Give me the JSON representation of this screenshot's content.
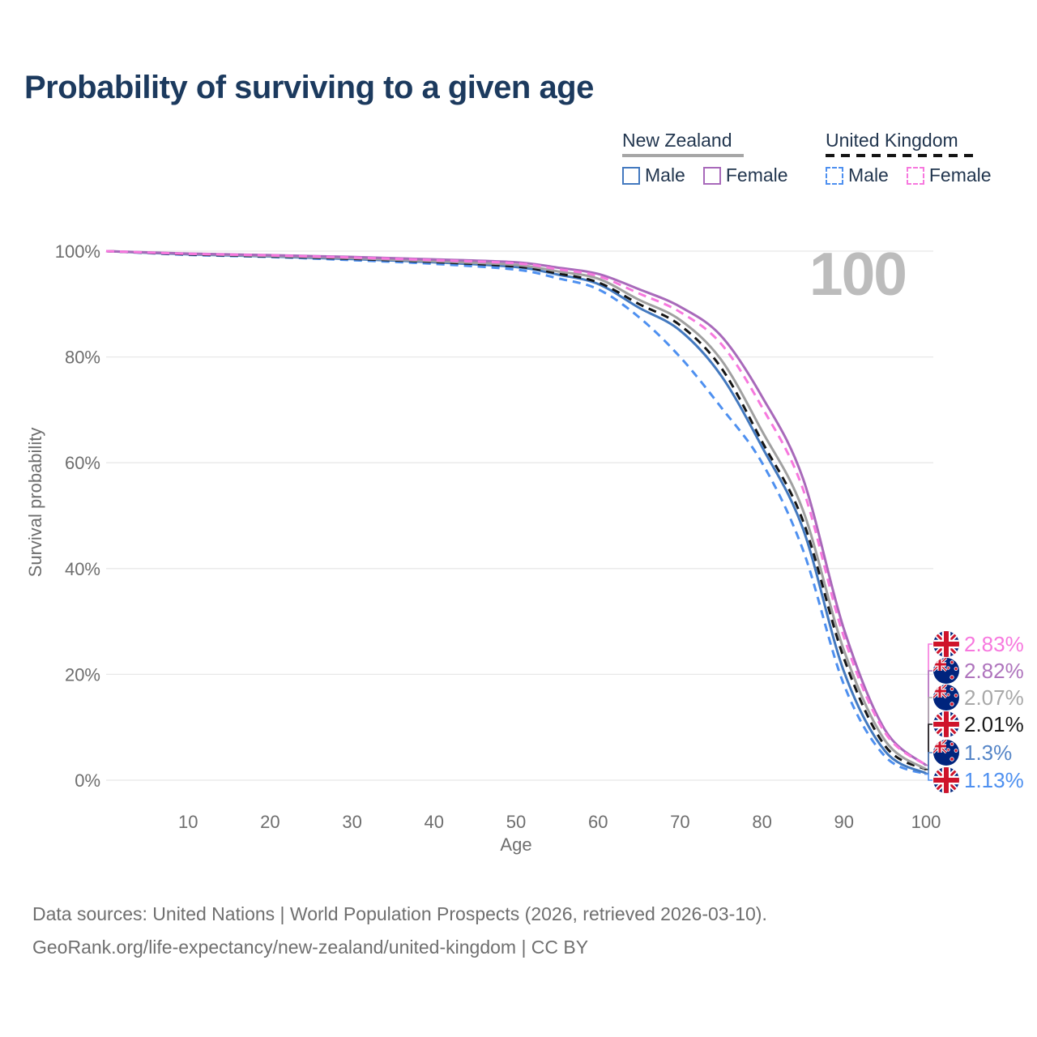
{
  "title": "Probability of surviving to a given age",
  "watermark": "100",
  "legend": {
    "groups": [
      {
        "name": "New Zealand",
        "line_style": "solid",
        "underline_color": "#a6a6a6",
        "items": [
          {
            "label": "Male",
            "color": "#4379bf"
          },
          {
            "label": "Female",
            "color": "#a869ba"
          }
        ]
      },
      {
        "name": "United Kingdom",
        "line_style": "dashed",
        "underline_color": "#141414",
        "items": [
          {
            "label": "Male",
            "color": "#4e90f0"
          },
          {
            "label": "Female",
            "color": "#f778de"
          }
        ]
      }
    ]
  },
  "axes": {
    "y_label": "Survival probability",
    "y_ticks": [
      0,
      20,
      40,
      60,
      80,
      100
    ],
    "y_tick_suffix": "%",
    "x_label": "Age",
    "x_ticks": [
      10,
      20,
      30,
      40,
      50,
      60,
      70,
      80,
      90,
      100
    ]
  },
  "chart_data": {
    "type": "line",
    "xlabel": "Age",
    "ylabel": "Survival probability",
    "xlim": [
      0,
      100
    ],
    "ylim": [
      0,
      100
    ],
    "grid": "horizontal",
    "x": [
      0,
      10,
      20,
      30,
      40,
      50,
      55,
      60,
      65,
      70,
      75,
      80,
      85,
      90,
      95,
      100
    ],
    "series": [
      {
        "name": "United Kingdom Male",
        "country": "uk",
        "sex": "male",
        "color": "#4e90f0",
        "dashed": true,
        "values": [
          100,
          99.3,
          98.9,
          98.3,
          97.6,
          96.5,
          94.9,
          92.8,
          87.5,
          80.0,
          70.5,
          60.0,
          43.5,
          18.0,
          4.5,
          1.13
        ]
      },
      {
        "name": "New Zealand Male",
        "country": "nz",
        "sex": "male",
        "color": "#4379bf",
        "dashed": false,
        "values": [
          100,
          99.4,
          99.0,
          98.5,
          97.9,
          97.0,
          95.6,
          93.8,
          89.3,
          85.0,
          76.5,
          63.0,
          47.5,
          20.5,
          5.5,
          1.3
        ]
      },
      {
        "name": "United Kingdom Both sexes",
        "country": "uk",
        "sex": "both",
        "color": "#151515",
        "dashed": true,
        "values": [
          100,
          99.4,
          99.0,
          98.55,
          97.95,
          97.1,
          95.8,
          94.1,
          90.0,
          86.0,
          78.0,
          64.0,
          49.0,
          23.0,
          6.5,
          2.01
        ]
      },
      {
        "name": "New Zealand Both sexes",
        "country": "nz",
        "sex": "both",
        "color": "#a0a0a0",
        "dashed": false,
        "values": [
          100,
          99.5,
          99.1,
          98.7,
          98.1,
          97.4,
          96.2,
          94.8,
          90.8,
          87.0,
          79.5,
          66.0,
          51.0,
          24.5,
          7.5,
          2.07
        ]
      },
      {
        "name": "New Zealand Female",
        "country": "nz",
        "sex": "female",
        "color": "#a869ba",
        "dashed": false,
        "values": [
          100,
          99.55,
          99.25,
          98.9,
          98.45,
          97.9,
          96.9,
          95.7,
          92.8,
          89.5,
          84.0,
          72.5,
          57.0,
          28.5,
          9.5,
          2.82
        ]
      },
      {
        "name": "United Kingdom Female",
        "country": "uk",
        "sex": "female",
        "color": "#f778de",
        "dashed": true,
        "values": [
          100,
          99.5,
          99.2,
          98.8,
          98.3,
          97.7,
          96.6,
          95.3,
          92.0,
          88.5,
          82.5,
          70.5,
          55.0,
          27.0,
          9.0,
          2.83
        ]
      }
    ]
  },
  "end_labels": [
    {
      "flag": "uk",
      "value": "2.83%",
      "number": 2.83,
      "color": "#f778de"
    },
    {
      "flag": "nz",
      "value": "2.82%",
      "number": 2.82,
      "color": "#af74bd"
    },
    {
      "flag": "nz",
      "value": "2.07%",
      "number": 2.07,
      "color": "#a8a8a8"
    },
    {
      "flag": "uk",
      "value": "2.01%",
      "number": 2.01,
      "color": "#1a1a1a"
    },
    {
      "flag": "nz",
      "value": "1.3%",
      "number": 1.3,
      "color": "#5585c7"
    },
    {
      "flag": "uk",
      "value": "1.13%",
      "number": 1.13,
      "color": "#4e90f0"
    }
  ],
  "footer": {
    "line1": "Data sources: United Nations | World Population Prospects (2026, retrieved 2026-03-10).",
    "line2": "GeoRank.org/life-expectancy/new-zealand/united-kingdom | CC BY"
  }
}
